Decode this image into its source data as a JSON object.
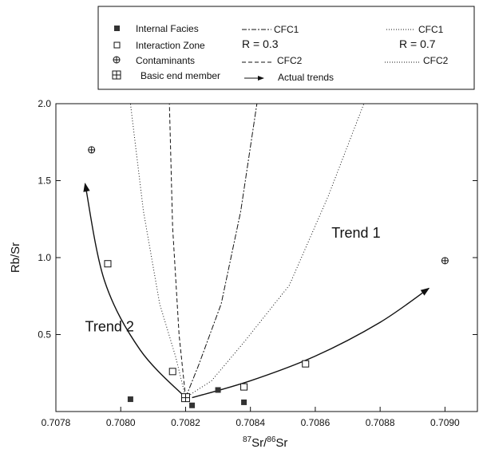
{
  "legend": {
    "internal": "Internal Facies",
    "interaction": "Interaction Zone",
    "contaminants": "Contaminants",
    "basic": "Basic end member",
    "r_low": "R = 0.3",
    "r_high": "R = 0.7",
    "cfc1_a": "CFC1",
    "cfc2_a": "CFC2",
    "cfc1_b": "CFC1",
    "cfc2_b": "CFC2",
    "trends": "Actual trends"
  },
  "chart_data": {
    "type": "scatter",
    "xlabel_prefix_sup1": "87",
    "xlabel_mid": "Sr/",
    "xlabel_sup2": "86",
    "xlabel_suffix": "Sr",
    "ylabel": "Rb/Sr",
    "xlim": [
      0.7078,
      0.7091
    ],
    "ylim": [
      0,
      2.0
    ],
    "xticks": [
      0.7078,
      0.708,
      0.7082,
      0.7084,
      0.7086,
      0.7088,
      0.709
    ],
    "xtick_labels": [
      "0.7078",
      "0.7080",
      "0.7082",
      "0.7084",
      "0.7086",
      "0.7088",
      "0.7090"
    ],
    "yticks": [
      0.5,
      1.0,
      1.5,
      2.0
    ],
    "ytick_labels": [
      "0.5",
      "1.0",
      "1.5",
      "2.0"
    ],
    "annotations": [
      {
        "text": "Trend 1",
        "x": 0.70865,
        "y": 1.13
      },
      {
        "text": "Trend 2",
        "x": 0.70789,
        "y": 0.52
      }
    ],
    "series": [
      {
        "name": "Internal Facies",
        "marker": "filled-square",
        "points": [
          [
            0.70803,
            0.08
          ],
          [
            0.70822,
            0.04
          ],
          [
            0.7083,
            0.14
          ],
          [
            0.70838,
            0.06
          ]
        ]
      },
      {
        "name": "Interaction Zone",
        "marker": "open-square",
        "points": [
          [
            0.70796,
            0.96
          ],
          [
            0.70816,
            0.26
          ],
          [
            0.70838,
            0.16
          ],
          [
            0.70857,
            0.31
          ]
        ]
      },
      {
        "name": "Contaminants",
        "marker": "circle-plus",
        "points": [
          [
            0.70791,
            1.7
          ],
          [
            0.709,
            0.98
          ]
        ]
      },
      {
        "name": "Basic end member",
        "marker": "boxed-plus",
        "points": [
          [
            0.7082,
            0.09
          ]
        ]
      }
    ],
    "lines": [
      {
        "name": "CFC2 R=0.7",
        "style": "dotted",
        "points": [
          [
            0.7082,
            0.09
          ],
          [
            0.70817,
            0.35
          ],
          [
            0.70812,
            0.7
          ],
          [
            0.70807,
            1.3
          ],
          [
            0.70803,
            2.0
          ]
        ]
      },
      {
        "name": "CFC1 R=0.7",
        "style": "dotted",
        "points": [
          [
            0.7082,
            0.09
          ],
          [
            0.70828,
            0.2
          ],
          [
            0.70838,
            0.45
          ],
          [
            0.70852,
            0.82
          ],
          [
            0.70864,
            1.4
          ],
          [
            0.70875,
            2.0
          ]
        ]
      },
      {
        "name": "CFC2 R=0.3",
        "style": "dash",
        "points": [
          [
            0.7082,
            0.09
          ],
          [
            0.70818,
            0.5
          ],
          [
            0.70816,
            1.2
          ],
          [
            0.70815,
            2.0
          ]
        ]
      },
      {
        "name": "CFC1 R=0.3",
        "style": "dashdot",
        "points": [
          [
            0.7082,
            0.09
          ],
          [
            0.70824,
            0.3
          ],
          [
            0.70831,
            0.7
          ],
          [
            0.70837,
            1.3
          ],
          [
            0.70842,
            2.0
          ]
        ]
      }
    ],
    "trends": [
      {
        "name": "Trend 1",
        "points": [
          [
            0.70822,
            0.09
          ],
          [
            0.7084,
            0.2
          ],
          [
            0.7086,
            0.36
          ],
          [
            0.7088,
            0.58
          ],
          [
            0.70895,
            0.8
          ]
        ]
      },
      {
        "name": "Trend 2",
        "points": [
          [
            0.7082,
            0.09
          ],
          [
            0.70806,
            0.4
          ],
          [
            0.70795,
            0.85
          ],
          [
            0.70789,
            1.48
          ]
        ]
      }
    ]
  }
}
